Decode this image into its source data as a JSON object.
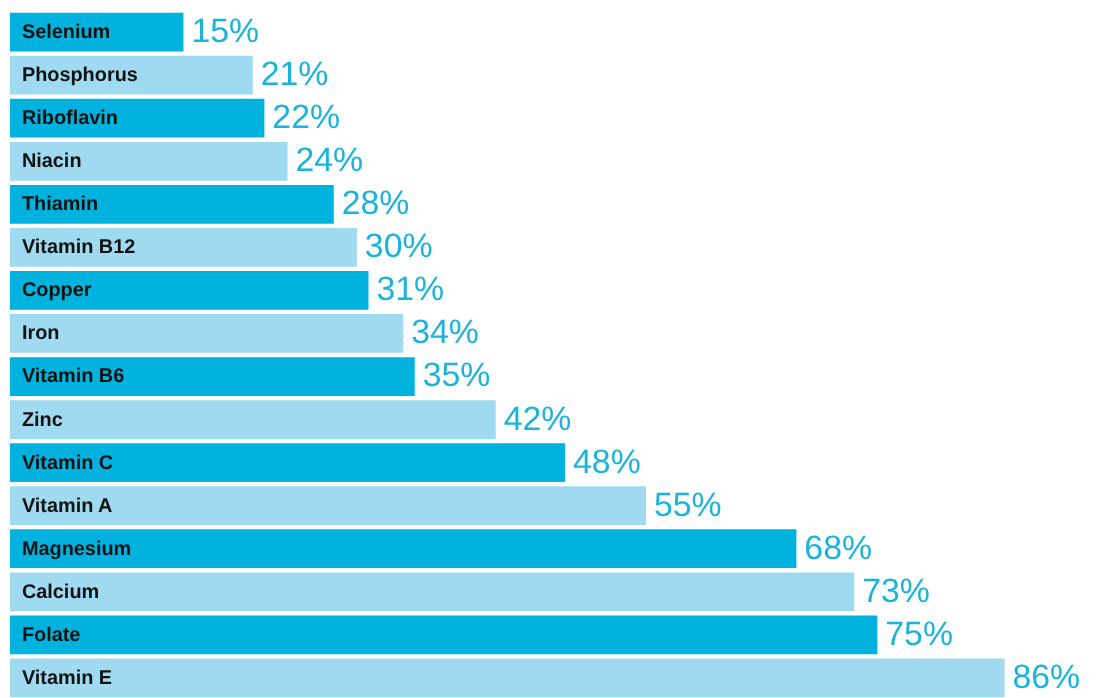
{
  "chart_data": {
    "type": "bar",
    "orientation": "horizontal",
    "categories": [
      "Selenium",
      "Phosphorus",
      "Riboflavin",
      "Niacin",
      "Thiamin",
      "Vitamin B12",
      "Copper",
      "Iron",
      "Vitamin B6",
      "Zinc",
      "Vitamin C",
      "Vitamin A",
      "Magnesium",
      "Calcium",
      "Folate",
      "Vitamin E"
    ],
    "values": [
      15,
      21,
      22,
      24,
      28,
      30,
      31,
      34,
      35,
      42,
      48,
      55,
      68,
      73,
      75,
      86
    ],
    "colors": [
      "#00b2dd",
      "#9fdaf0",
      "#00b2dd",
      "#9fdaf0",
      "#00b2dd",
      "#9fdaf0",
      "#00b2dd",
      "#9fdaf0",
      "#00b2dd",
      "#9fdaf0",
      "#00b2dd",
      "#9fdaf0",
      "#00b2dd",
      "#9fdaf0",
      "#00b2dd",
      "#9fdaf0"
    ],
    "value_labels": [
      "15%",
      "21%",
      "22%",
      "24%",
      "28%",
      "30%",
      "31%",
      "34%",
      "35%",
      "42%",
      "48%",
      "55%",
      "68%",
      "73%",
      "75%",
      "86%"
    ]
  }
}
